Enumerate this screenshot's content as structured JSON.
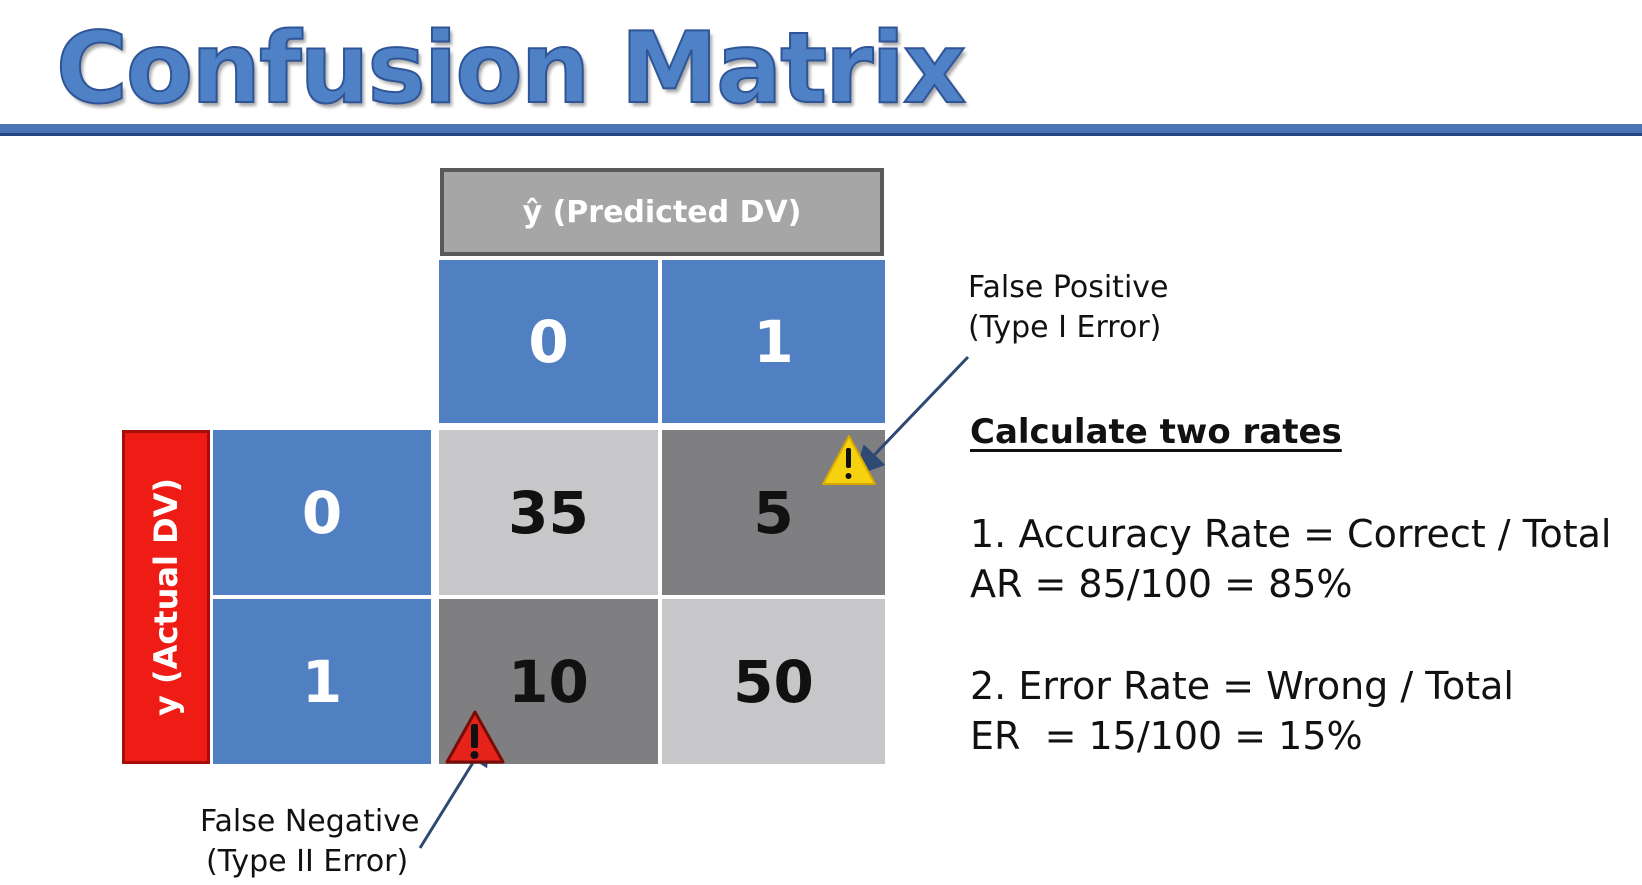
{
  "title": "Confusion Matrix",
  "matrix": {
    "predicted_header": "ŷ (Predicted DV)",
    "actual_header": "y (Actual DV)",
    "column_labels": [
      "0",
      "1"
    ],
    "row_labels": [
      "0",
      "1"
    ],
    "cells": [
      [
        "35",
        "5"
      ],
      [
        "10",
        "50"
      ]
    ]
  },
  "annotations": {
    "false_positive": {
      "line1": "False Positive",
      "line2": "(Type I Error)"
    },
    "false_negative": {
      "line1": "False Negative",
      "line2": "(Type II Error)"
    }
  },
  "rates": {
    "heading": "Calculate two rates",
    "accuracy_formula": "1. Accuracy Rate = Correct / Total",
    "accuracy_value": "AR = 85/100 = 85%",
    "error_formula": "2. Error Rate = Wrong / Total",
    "error_value": "ER  = 15/100 = 15%"
  },
  "colors": {
    "title_blue": "#4f81c7",
    "cell_blue": "#5180c2",
    "cell_light_gray": "#c7c6c8",
    "cell_dark_gray": "#7f7e80",
    "actual_red": "#ee1c14",
    "warning_yellow": "#f5d10f",
    "warning_red": "#e5231b"
  },
  "icons": [
    "warning-yellow-icon",
    "warning-red-icon"
  ]
}
